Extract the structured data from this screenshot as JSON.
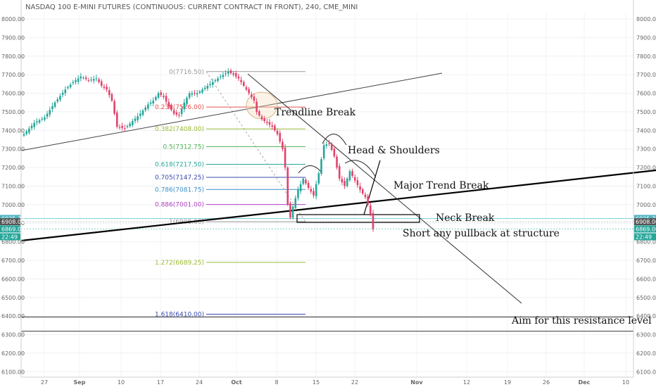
{
  "header": {
    "title": "NASDAQ 100 E-MINI FUTURES (CONTINUOUS: CURRENT CONTRACT IN FRONT), 240, CME_MINI"
  },
  "chart_data": {
    "type": "candlestick",
    "ylim": [
      6080,
      8050
    ],
    "y_ticks": [
      "8000.00",
      "7900.00",
      "7800.00",
      "7700.00",
      "7600.00",
      "7500.00",
      "7400.00",
      "7300.00",
      "7200.00",
      "7100.00",
      "7000.00",
      "6900.00",
      "6800.00",
      "6700.00",
      "6600.00",
      "6500.00",
      "6400.00",
      "6300.00",
      "6200.00",
      "6100.00"
    ],
    "x_ticks": [
      {
        "label": "27",
        "bold": false
      },
      {
        "label": "Sep",
        "bold": true
      },
      {
        "label": "10",
        "bold": false
      },
      {
        "label": "17",
        "bold": false
      },
      {
        "label": "24",
        "bold": false
      },
      {
        "label": "Oct",
        "bold": true
      },
      {
        "label": "8",
        "bold": false
      },
      {
        "label": "15",
        "bold": false
      },
      {
        "label": "22",
        "bold": false
      },
      {
        "label": "Nov",
        "bold": true
      },
      {
        "label": "12",
        "bold": false
      },
      {
        "label": "19",
        "bold": false
      },
      {
        "label": "26",
        "bold": false
      },
      {
        "label": "Dec",
        "bold": true
      },
      {
        "label": "10",
        "bold": false
      }
    ],
    "fib_levels": [
      {
        "label": "0(7716.50)",
        "value": 7716.5,
        "color": "#999999"
      },
      {
        "label": "0.236(7526.00)",
        "value": 7526.0,
        "color": "#e05050"
      },
      {
        "label": "0.382(7408.00)",
        "value": 7408.0,
        "color": "#9bbb32"
      },
      {
        "label": "0.5(7312.75)",
        "value": 7312.75,
        "color": "#4caf50"
      },
      {
        "label": "0.618(7217.50)",
        "value": 7217.5,
        "color": "#26a69a"
      },
      {
        "label": "0.705(7147.25)",
        "value": 7147.25,
        "color": "#3949ab"
      },
      {
        "label": "0.786(7081.75)",
        "value": 7081.75,
        "color": "#3a8fc9"
      },
      {
        "label": "0.886(7001.00)",
        "value": 7001.0,
        "color": "#b040c0"
      },
      {
        "label": "1(6908.00)",
        "value": 6908.0,
        "color": "#999999"
      },
      {
        "label": "1.272(6689.25)",
        "value": 6689.25,
        "color": "#9bbb32"
      },
      {
        "label": "1.618(6410.00)",
        "value": 6410.0,
        "color": "#3949ab"
      }
    ],
    "price_tags": [
      {
        "label": "6925.75",
        "value": 6925.75,
        "color": "#4fb3c0"
      },
      {
        "label": "6908.00",
        "value": 6908.0,
        "color": "#555555"
      },
      {
        "label": "6869.00",
        "value": 6869.0,
        "color": "#26a69a"
      },
      {
        "label": "22:49",
        "value": 6827.0,
        "color": "#26a69a"
      }
    ],
    "price_path": [
      [
        0,
        7380
      ],
      [
        4,
        7440
      ],
      [
        8,
        7470
      ],
      [
        12,
        7550
      ],
      [
        16,
        7620
      ],
      [
        19,
        7660
      ],
      [
        22,
        7690
      ],
      [
        25,
        7670
      ],
      [
        28,
        7680
      ],
      [
        30,
        7640
      ],
      [
        32,
        7620
      ],
      [
        34,
        7560
      ],
      [
        36,
        7420
      ],
      [
        39,
        7410
      ],
      [
        42,
        7450
      ],
      [
        45,
        7490
      ],
      [
        48,
        7540
      ],
      [
        50,
        7560
      ],
      [
        52,
        7600
      ],
      [
        54,
        7580
      ],
      [
        56,
        7530
      ],
      [
        58,
        7490
      ],
      [
        60,
        7480
      ],
      [
        62,
        7550
      ],
      [
        64,
        7600
      ],
      [
        67,
        7600
      ],
      [
        70,
        7630
      ],
      [
        73,
        7660
      ],
      [
        76,
        7690
      ],
      [
        79,
        7716
      ],
      [
        81,
        7700
      ],
      [
        83,
        7680
      ],
      [
        85,
        7640
      ],
      [
        87,
        7600
      ],
      [
        89,
        7560
      ],
      [
        90,
        7500
      ],
      [
        92,
        7460
      ],
      [
        94,
        7440
      ],
      [
        96,
        7420
      ],
      [
        98,
        7380
      ],
      [
        100,
        7300
      ],
      [
        101,
        7200
      ],
      [
        102,
        7000
      ],
      [
        103,
        6930
      ],
      [
        104,
        6990
      ],
      [
        106,
        7080
      ],
      [
        108,
        7140
      ],
      [
        110,
        7090
      ],
      [
        112,
        7050
      ],
      [
        114,
        7170
      ],
      [
        116,
        7320
      ],
      [
        118,
        7330
      ],
      [
        120,
        7260
      ],
      [
        122,
        7140
      ],
      [
        124,
        7100
      ],
      [
        126,
        7180
      ],
      [
        128,
        7130
      ],
      [
        130,
        7080
      ],
      [
        132,
        7040
      ],
      [
        133,
        7000
      ],
      [
        134,
        6950
      ],
      [
        135,
        6869
      ]
    ],
    "annotations": [
      {
        "text": "Trendline Break"
      },
      {
        "text": "Head & Shoulders"
      },
      {
        "text": "Major Trend Break"
      },
      {
        "text": "Neck Break"
      },
      {
        "text": "Short any pullback at structure"
      },
      {
        "text": "Aim for this resistance level"
      }
    ]
  }
}
